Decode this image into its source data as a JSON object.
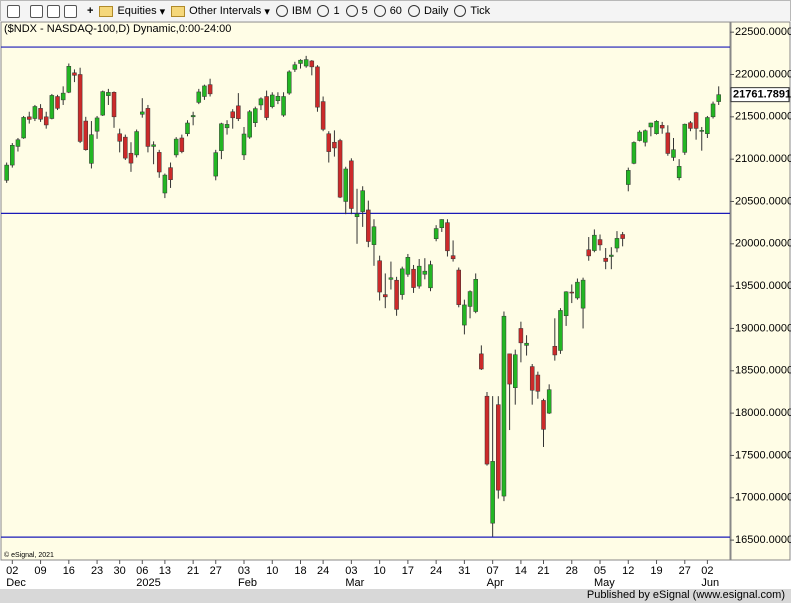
{
  "toolbar": {
    "items": [
      "Equities",
      "Other Intervals",
      "IBM",
      "1",
      "5",
      "60",
      "Daily",
      "Tick"
    ]
  },
  "footer": "Published by eSignal (www.esignal.com)",
  "chart_data": {
    "type": "candlestick",
    "title": "($NDX - NASDAQ-100,D) Dynamic,0:00-24:00",
    "copyright": "© eSignal, 2021",
    "up_color": "#23b623",
    "down_color": "#cc2a2a",
    "line_color": "#1a1ab8",
    "hlines": [
      22324,
      20359,
      16535
    ],
    "ylim": [
      16265,
      22620
    ],
    "yticks": [
      {
        "value": 16500,
        "label": "16500.0000"
      },
      {
        "value": 17000,
        "label": "17000.0000"
      },
      {
        "value": 17500,
        "label": "17500.0000"
      },
      {
        "value": 18000,
        "label": "18000.0000"
      },
      {
        "value": 18500,
        "label": "18500.0000"
      },
      {
        "value": 19000,
        "label": "19000.0000"
      },
      {
        "value": 19500,
        "label": "19500.0000"
      },
      {
        "value": 20000,
        "label": "20000.0000"
      },
      {
        "value": 20500,
        "label": "20500.0000"
      },
      {
        "value": 21000,
        "label": "21000.0000"
      },
      {
        "value": 21500,
        "label": "21500.0000"
      },
      {
        "value": 22000,
        "label": "22000.0000"
      },
      {
        "value": 22500,
        "label": "22500.0000"
      }
    ],
    "xlim": [
      -1,
      128
    ],
    "xticks": [
      {
        "value": 1,
        "label": "02"
      },
      {
        "value": 6,
        "label": "09"
      },
      {
        "value": 11,
        "label": "16"
      },
      {
        "value": 16,
        "label": "23"
      },
      {
        "value": 20,
        "label": "30"
      },
      {
        "value": 24,
        "label": "06"
      },
      {
        "value": 28,
        "label": "13"
      },
      {
        "value": 33,
        "label": "21"
      },
      {
        "value": 37,
        "label": "27"
      },
      {
        "value": 42,
        "label": "03"
      },
      {
        "value": 47,
        "label": "10"
      },
      {
        "value": 52,
        "label": "18"
      },
      {
        "value": 56,
        "label": "24"
      },
      {
        "value": 61,
        "label": "03"
      },
      {
        "value": 66,
        "label": "10"
      },
      {
        "value": 71,
        "label": "17"
      },
      {
        "value": 76,
        "label": "24"
      },
      {
        "value": 81,
        "label": "31"
      },
      {
        "value": 86,
        "label": "07"
      },
      {
        "value": 91,
        "label": "14"
      },
      {
        "value": 95,
        "label": "21"
      },
      {
        "value": 100,
        "label": "28"
      },
      {
        "value": 105,
        "label": "05"
      },
      {
        "value": 110,
        "label": "12"
      },
      {
        "value": 115,
        "label": "19"
      },
      {
        "value": 120,
        "label": "27"
      },
      {
        "value": 124,
        "label": "02"
      }
    ],
    "month_ticks": [
      {
        "value": 1,
        "label": "Dec"
      },
      {
        "value": 24,
        "label": "2025"
      },
      {
        "value": 42,
        "label": "Feb"
      },
      {
        "value": 61,
        "label": "Mar"
      },
      {
        "value": 86,
        "label": "Apr"
      },
      {
        "value": 105,
        "label": "May"
      },
      {
        "value": 124,
        "label": "Jun"
      }
    ],
    "open": [
      20750,
      20930,
      21150,
      21250,
      21500,
      21480,
      21600,
      21500,
      21480,
      21740,
      21700,
      21790,
      22020,
      22000,
      21450,
      20950,
      21330,
      21520,
      21750,
      21790,
      21300,
      21260,
      21070,
      21050,
      21530,
      21600,
      21150,
      21080,
      20600,
      20900,
      21050,
      21250,
      21300,
      21500,
      21670,
      21740,
      21880,
      20800,
      21100,
      21370,
      21560,
      21630,
      21050,
      21260,
      21430,
      21640,
      21740,
      21620,
      21690,
      21520,
      21780,
      22060,
      22130,
      22100,
      22160,
      22090,
      21680,
      21300,
      21200,
      21220,
      20500,
      20980,
      20320,
      20380,
      20400,
      19990,
      19800,
      19400,
      19580,
      19570,
      19400,
      19640,
      19700,
      19500,
      19640,
      19480,
      20060,
      20190,
      20250,
      19860,
      19690,
      19040,
      19260,
      19200,
      18700,
      18200,
      16700,
      18100,
      17020,
      18700,
      18300,
      19000,
      18800,
      18550,
      18450,
      18150,
      18000,
      18790,
      18740,
      19150,
      19430,
      19360,
      19240,
      19930,
      19920,
      20050,
      19830,
      19850,
      19950,
      20110,
      20700,
      20950,
      21220,
      21200,
      21380,
      21300,
      21400,
      21310,
      21020,
      20780,
      21080,
      21430,
      21550,
      21330,
      21300,
      21500,
      21680
    ],
    "high": [
      20960,
      21190,
      21250,
      21510,
      21560,
      21640,
      21650,
      21560,
      21770,
      21760,
      21860,
      22130,
      22060,
      22080,
      21500,
      21450,
      21510,
      21810,
      21830,
      21800,
      21360,
      21290,
      21200,
      21350,
      21720,
      21640,
      21210,
      21110,
      20830,
      20960,
      21260,
      21290,
      21460,
      21560,
      21830,
      21880,
      21950,
      21110,
      21430,
      21460,
      21590,
      21780,
      21380,
      21580,
      21620,
      21730,
      21810,
      21790,
      21790,
      21790,
      22050,
      22150,
      22180,
      22220,
      22170,
      22110,
      21740,
      21330,
      21340,
      21240,
      20910,
      21010,
      20650,
      20680,
      20510,
      20290,
      19860,
      19650,
      19790,
      19610,
      19730,
      19880,
      19750,
      19820,
      19830,
      19800,
      20220,
      20290,
      20290,
      20040,
      19720,
      19340,
      19450,
      19650,
      18800,
      18250,
      18200,
      18200,
      19200,
      18700,
      18750,
      19080,
      18920,
      18580,
      18490,
      18170,
      18340,
      19120,
      19240,
      19440,
      19520,
      19590,
      19600,
      20080,
      20170,
      20110,
      19950,
      19960,
      20150,
      20140,
      20900,
      21210,
      21340,
      21350,
      21430,
      21460,
      21440,
      21400,
      21250,
      21000,
      21420,
      21450,
      21560,
      21380,
      21510,
      21680,
      21860
    ],
    "low": [
      20720,
      20900,
      21090,
      21240,
      21420,
      21450,
      21440,
      21360,
      21470,
      21580,
      21640,
      21780,
      21910,
      21190,
      21100,
      20890,
      21240,
      21510,
      21640,
      21370,
      21080,
      20990,
      20850,
      21020,
      21490,
      21080,
      20940,
      20780,
      20540,
      20660,
      21020,
      21070,
      21270,
      21400,
      21650,
      21700,
      21740,
      20750,
      21000,
      21290,
      21360,
      21450,
      20990,
      21240,
      21380,
      21580,
      21460,
      21600,
      21650,
      21500,
      21760,
      22030,
      22070,
      22080,
      21990,
      21560,
      21330,
      20960,
      21030,
      20540,
      20350,
      20350,
      20000,
      20200,
      19960,
      19740,
      19330,
      19240,
      19460,
      19150,
      19340,
      19610,
      19420,
      19470,
      19580,
      19440,
      20030,
      20140,
      19850,
      19790,
      19250,
      18930,
      19120,
      19180,
      18510,
      17380,
      16542,
      16990,
      16960,
      17800,
      18100,
      18600,
      18680,
      18100,
      18170,
      17600,
      17990,
      18620,
      18700,
      19030,
      19300,
      19340,
      19000,
      19800,
      19900,
      19920,
      19700,
      19700,
      19900,
      19970,
      20620,
      20940,
      21210,
      21150,
      21270,
      21290,
      21300,
      21040,
      20980,
      20750,
      21050,
      21330,
      21230,
      21100,
      21250,
      21480,
      21640
    ],
    "close": [
      20930,
      21164,
      21229,
      21493,
      21469,
      21622,
      21471,
      21404,
      21753,
      21600,
      21780,
      22097,
      21990,
      21209,
      21111,
      21289,
      21487,
      21798,
      21789,
      21500,
      21211,
      21012,
      20953,
      21326,
      21558,
      21150,
      21170,
      20848,
      20812,
      20757,
      21237,
      21089,
      21427,
      21516,
      21794,
      21865,
      21771,
      21077,
      21418,
      21411,
      21488,
      21478,
      21297,
      21560,
      21597,
      21713,
      21491,
      21758,
      21743,
      21740,
      22031,
      22115,
      22169,
      22176,
      22090,
      21614,
      21352,
      21089,
      21132,
      20551,
      20884,
      20417,
      20353,
      20628,
      20027,
      20202,
      19430,
      19373,
      19599,
      19225,
      19704,
      19841,
      19483,
      19736,
      19677,
      19754,
      20180,
      20287,
      19917,
      19823,
      19281,
      19278,
      19436,
      19581,
      18521,
      17398,
      17430,
      17090,
      19145,
      18343,
      18690,
      18830,
      18826,
      18270,
      18258,
      17808,
      18277,
      18687,
      19213,
      19433,
      19424,
      19547,
      19571,
      19857,
      20102,
      19987,
      19791,
      19867,
      20064,
      20062,
      20868,
      21197,
      21320,
      21336,
      21427,
      21447,
      21367,
      21067,
      21112,
      20915,
      21413,
      21363,
      21363,
      21340,
      21492,
      21652,
      21761.7891
    ]
  }
}
